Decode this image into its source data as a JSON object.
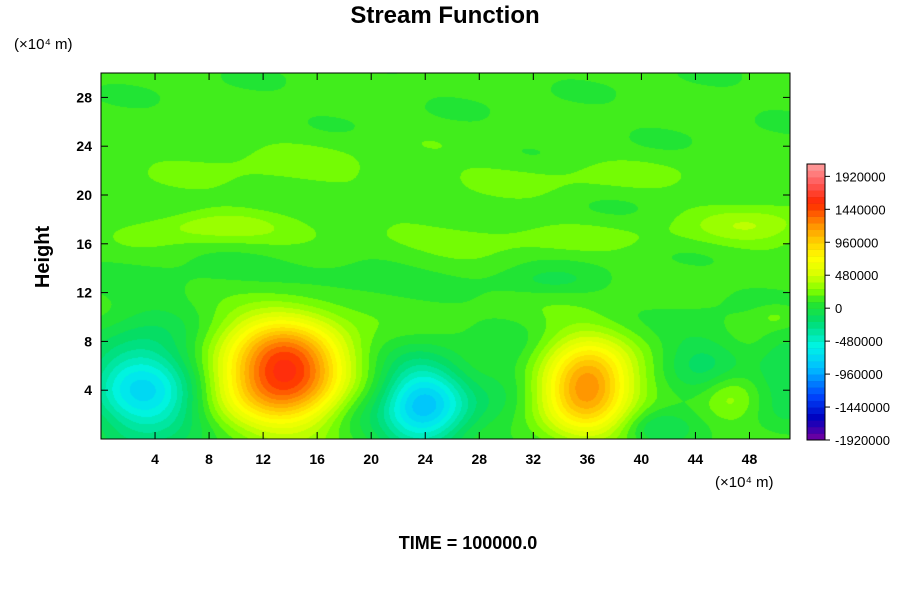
{
  "chart_data": {
    "type": "heatmap",
    "title": "Stream Function",
    "ylabel": "Height",
    "x_unit_label": "(×10⁴ m)",
    "y_unit_label": "(×10⁴ m)",
    "footer_text": "TIME = 100000.0",
    "xlim": [
      0,
      51
    ],
    "ylim": [
      0,
      30
    ],
    "x_ticks": [
      4,
      8,
      12,
      16,
      20,
      24,
      28,
      32,
      36,
      40,
      44,
      48
    ],
    "y_ticks": [
      4,
      8,
      12,
      16,
      20,
      24,
      28
    ],
    "colorbar": {
      "min": -1920000,
      "max": 2100000,
      "labels": [
        1920000,
        1440000,
        960000,
        480000,
        0,
        -480000,
        -960000,
        -1440000,
        -1920000
      ]
    },
    "features": [
      {
        "x": 13.5,
        "y": 5.5,
        "value": 1500000,
        "rx": 4.5,
        "ry": 4.2
      },
      {
        "x": 36.0,
        "y": 4.3,
        "value": 1150000,
        "rx": 3.3,
        "ry": 3.7
      },
      {
        "x": 3.2,
        "y": 4.0,
        "value": -800000,
        "rx": 4.0,
        "ry": 4.5
      },
      {
        "x": 23.8,
        "y": 2.7,
        "value": -950000,
        "rx": 3.3,
        "ry": 3.6
      },
      {
        "x": 12.0,
        "y": 22.5,
        "value": 80000,
        "rx": 10.0,
        "ry": 2.5
      },
      {
        "x": 34.0,
        "y": 21.5,
        "value": 80000,
        "rx": 14.0,
        "ry": 1.6
      },
      {
        "x": 8.0,
        "y": 17.5,
        "value": 200000,
        "rx": 5.0,
        "ry": 1.3
      },
      {
        "x": 48.5,
        "y": 17.5,
        "value": 230000,
        "rx": 4.5,
        "ry": 1.6
      },
      {
        "x": 27.0,
        "y": 16.5,
        "value": 110000,
        "rx": 16.0,
        "ry": 1.3
      },
      {
        "x": 17.0,
        "y": 13.2,
        "value": -120000,
        "rx": 6.0,
        "ry": 1.6
      },
      {
        "x": 33.0,
        "y": 12.9,
        "value": -120000,
        "rx": 4.0,
        "ry": 1.2
      },
      {
        "x": 7.0,
        "y": 12.5,
        "value": -60000,
        "rx": 6.0,
        "ry": 2.0
      },
      {
        "x": 44.5,
        "y": 6.0,
        "value": -220000,
        "rx": 3.0,
        "ry": 3.5
      },
      {
        "x": 50.5,
        "y": 5.5,
        "value": -200000,
        "rx": 2.0,
        "ry": 4.0
      },
      {
        "x": 46.5,
        "y": 3.5,
        "value": 220000,
        "rx": 2.0,
        "ry": 2.0
      },
      {
        "x": 30.0,
        "y": 5.0,
        "value": -150000,
        "rx": 2.5,
        "ry": 3.5
      },
      {
        "x": 18.5,
        "y": 3.0,
        "value": -120000,
        "rx": 2.0,
        "ry": 3.0
      },
      {
        "x": 41.0,
        "y": 1.0,
        "value": -200000,
        "rx": 2.5,
        "ry": 1.5
      },
      {
        "x": 50.0,
        "y": 10.0,
        "value": 150000,
        "rx": 1.5,
        "ry": 1.0
      }
    ]
  }
}
